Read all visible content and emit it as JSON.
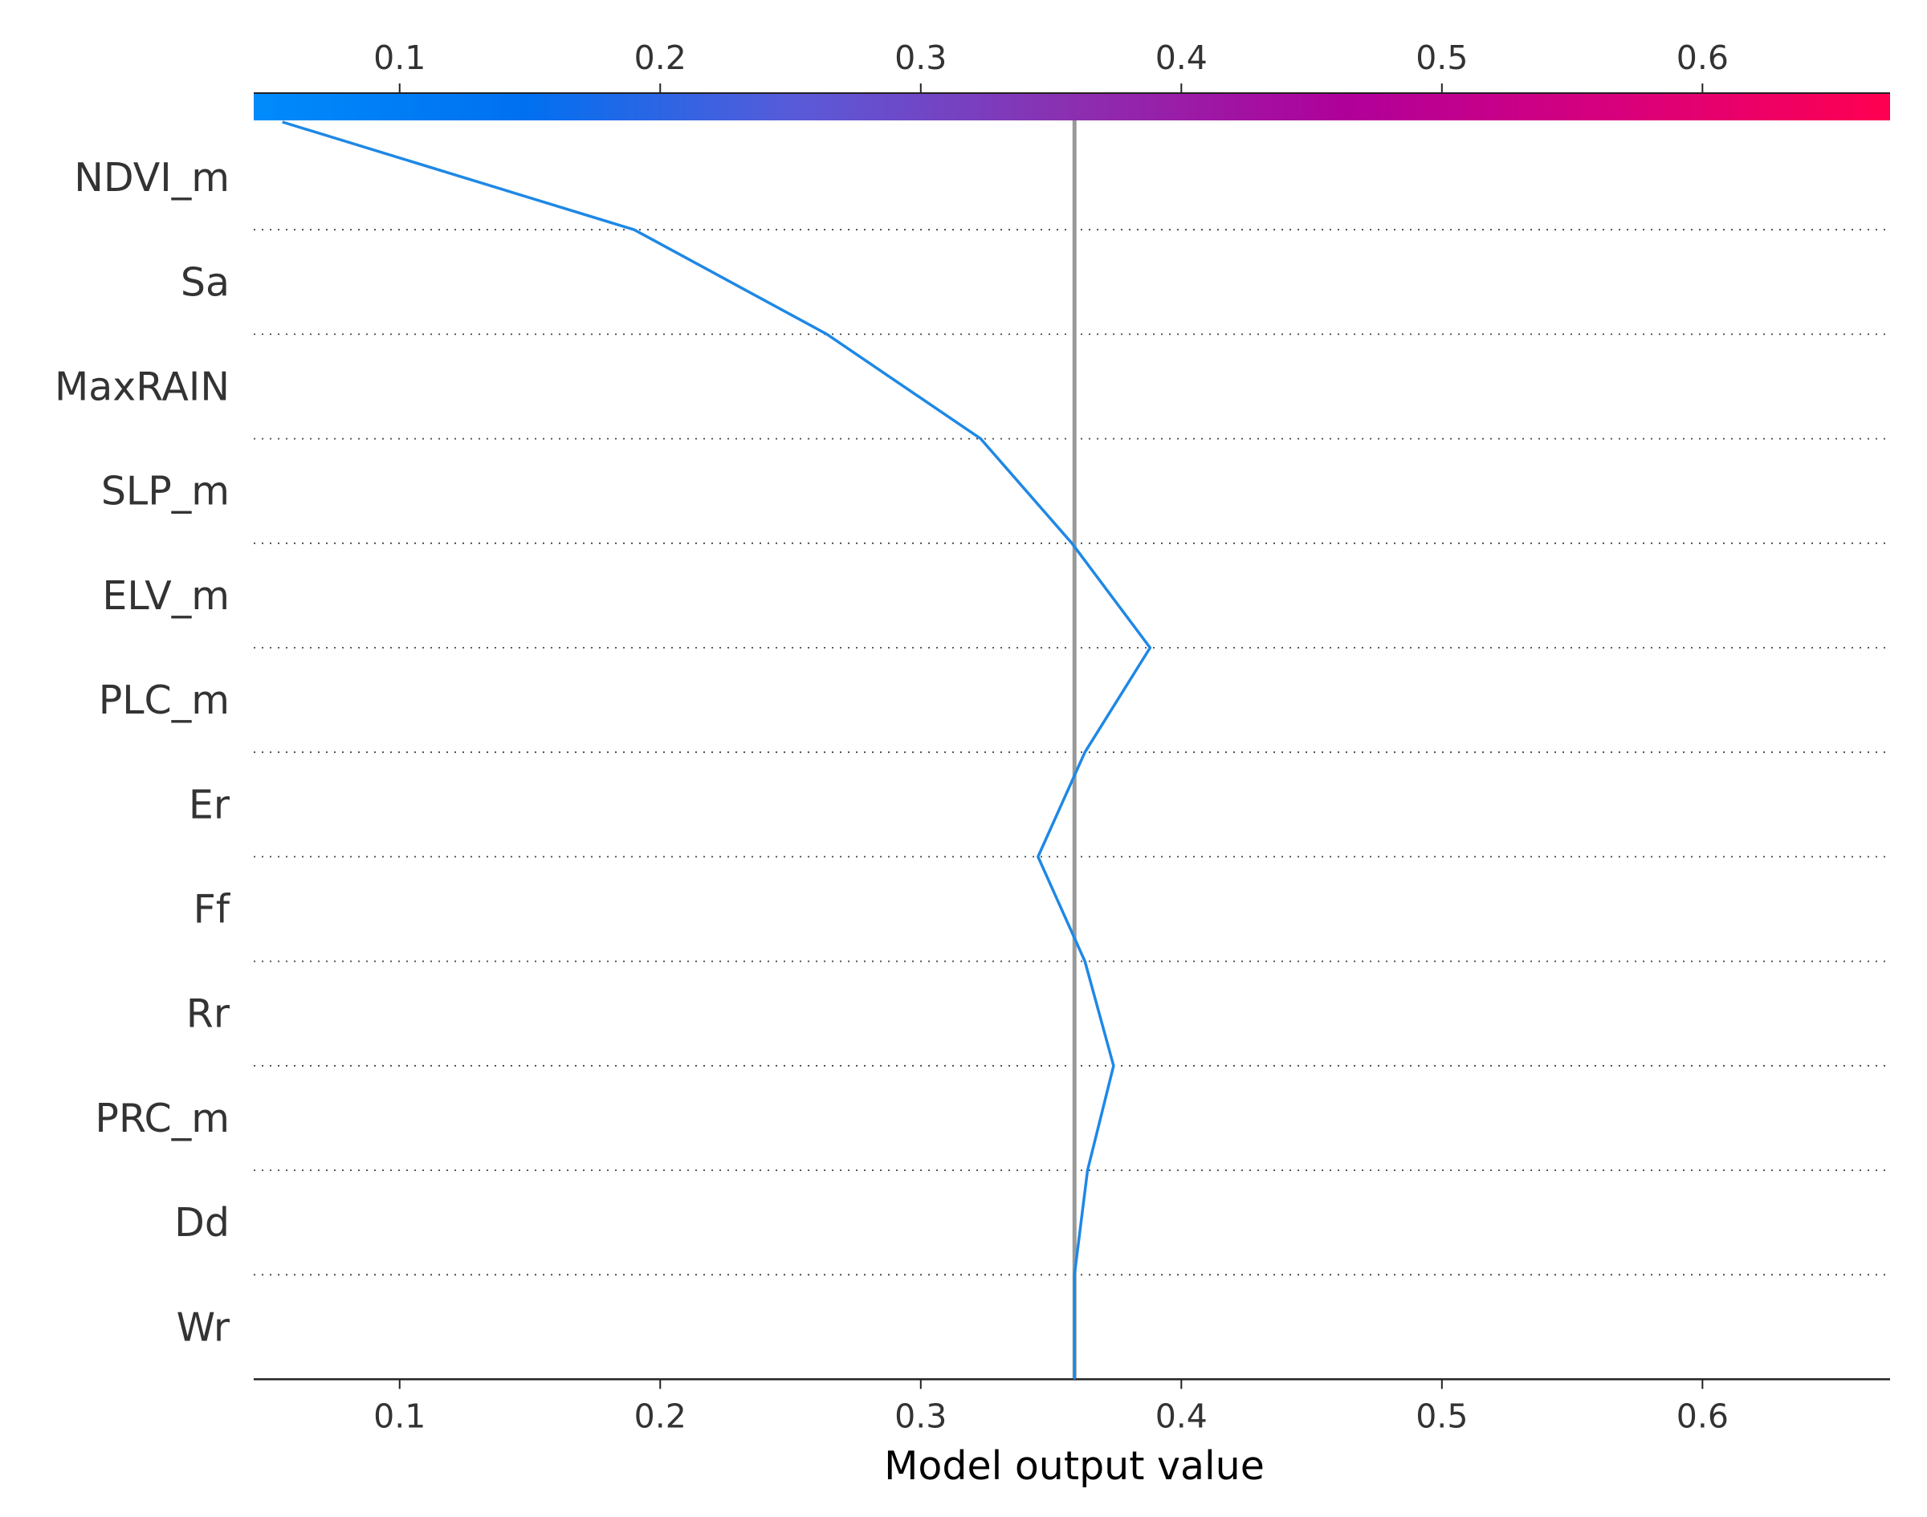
{
  "chart_data": {
    "type": "line",
    "chart_kind": "decision plot",
    "title": "",
    "xlabel": "Model output value",
    "ylabel": "",
    "xlim": [
      0.044,
      0.672
    ],
    "xticks": [
      0.1,
      0.2,
      0.3,
      0.4,
      0.5,
      0.6
    ],
    "xtick_labels": [
      "0.1",
      "0.2",
      "0.3",
      "0.4",
      "0.5",
      "0.6"
    ],
    "base_value": 0.359,
    "features": [
      "NDVI_m",
      "Sa",
      "MaxRAIN",
      "SLP_m",
      "ELV_m",
      "PLC_m",
      "Er",
      "Ff",
      "Rr",
      "PRC_m",
      "Dd",
      "Wr"
    ],
    "path": [
      {
        "boundary": "top",
        "value": 0.055
      },
      {
        "boundary": "NDVI_m",
        "value": 0.19
      },
      {
        "boundary": "Sa",
        "value": 0.264
      },
      {
        "boundary": "MaxRAIN",
        "value": 0.323
      },
      {
        "boundary": "SLP_m",
        "value": 0.358
      },
      {
        "boundary": "ELV_m",
        "value": 0.388
      },
      {
        "boundary": "PLC_m",
        "value": 0.363
      },
      {
        "boundary": "Er",
        "value": 0.345
      },
      {
        "boundary": "Ff",
        "value": 0.363
      },
      {
        "boundary": "Rr",
        "value": 0.374
      },
      {
        "boundary": "PRC_m",
        "value": 0.364
      },
      {
        "boundary": "Dd",
        "value": 0.359
      },
      {
        "boundary": "bottom",
        "value": 0.359
      }
    ],
    "colorbar": {
      "colormap": "red_blue",
      "stops": [
        "#008bfb",
        "#0070f0",
        "#5a5ad8",
        "#8b2fb0",
        "#b0009a",
        "#d8007c",
        "#ff0051"
      ]
    },
    "line_color": "#1e88e5",
    "base_line_color": "#999999",
    "grid": "dotted horizontal separators"
  }
}
